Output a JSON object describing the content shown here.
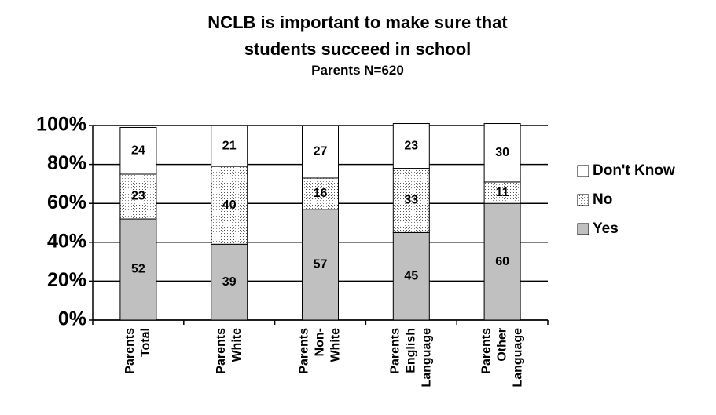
{
  "chart_data": {
    "type": "bar",
    "stacked": true,
    "title": "NCLB is important to make sure that students succeed in school",
    "subtitle": "Parents N=620",
    "categories": [
      [
        "Parents",
        "Total"
      ],
      [
        "Parents",
        "White"
      ],
      [
        "Parents",
        "Non-",
        "White"
      ],
      [
        "Parents",
        "English",
        "Language"
      ],
      [
        "Parents",
        "Other",
        "Language"
      ]
    ],
    "series": [
      {
        "name": "Yes",
        "color": "#c0c0c0",
        "values": [
          52,
          39,
          57,
          45,
          60
        ]
      },
      {
        "name": "No",
        "color": "dots",
        "values": [
          23,
          40,
          16,
          33,
          11
        ]
      },
      {
        "name": "Don't Know",
        "color": "#ffffff",
        "values": [
          24,
          21,
          27,
          23,
          30
        ]
      }
    ],
    "ylim": [
      0,
      100
    ],
    "yticks": [
      {
        "value": 0,
        "label": "0%"
      },
      {
        "value": 20,
        "label": "20%"
      },
      {
        "value": 40,
        "label": "40%"
      },
      {
        "value": 60,
        "label": "60%"
      },
      {
        "value": 80,
        "label": "80%"
      },
      {
        "value": 100,
        "label": "100%"
      }
    ],
    "grid": true,
    "legend": "right"
  }
}
